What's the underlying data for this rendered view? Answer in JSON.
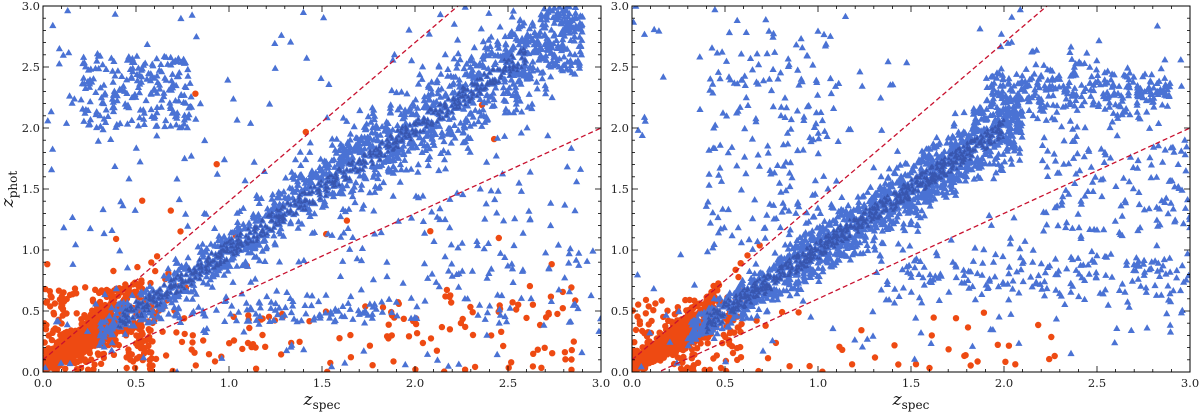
{
  "chart_data": [
    {
      "type": "scatter",
      "panel": "left",
      "xlabel": "z",
      "xlabel_sub": "spec",
      "ylabel": "z",
      "ylabel_sub": "phot",
      "xlim": [
        0.0,
        3.0
      ],
      "ylim": [
        0.0,
        3.0
      ],
      "xticks": [
        "0.0",
        "0.5",
        "1.0",
        "1.5",
        "2.0",
        "2.5",
        "3.0"
      ],
      "yticks": [
        "0.0",
        "0.5",
        "1.0",
        "1.5",
        "2.0",
        "2.5",
        "3.0"
      ],
      "reference_lines": [
        {
          "name": "upper-bound",
          "slope": 1.3,
          "intercept": 0.1
        },
        {
          "name": "lower-bound",
          "slope": 0.7,
          "intercept": -0.1
        }
      ],
      "series": [
        {
          "name": "blue-triangles",
          "marker": "triangle",
          "color": "#4a72d4",
          "relation": "z_phot tracks z_spec closely along the 1:1 relation from 0.3 to 2.9 with scattered outliers",
          "count": 2400
        },
        {
          "name": "red-circles",
          "marker": "circle",
          "color": "#ee4a12",
          "relation": "dense at z_spec < 0.6, z_phot < 0.6 with outliers up to z_spec 2.9",
          "count": 1300
        }
      ]
    },
    {
      "type": "scatter",
      "panel": "right",
      "xlabel": "z",
      "xlabel_sub": "spec",
      "xlim": [
        0.0,
        3.0
      ],
      "ylim": [
        0.0,
        3.0
      ],
      "xticks": [
        "0.0",
        "0.5",
        "1.0",
        "1.5",
        "2.0",
        "2.5",
        "3.0"
      ],
      "yticks": [
        "0.0",
        "0.5",
        "1.0",
        "1.5",
        "2.0",
        "2.5",
        "3.0"
      ],
      "reference_lines": [
        {
          "name": "upper-bound",
          "slope": 1.3,
          "intercept": 0.1
        },
        {
          "name": "lower-bound",
          "slope": 0.7,
          "intercept": -0.1
        }
      ],
      "series": [
        {
          "name": "blue-triangles",
          "marker": "triangle",
          "color": "#4a72d4",
          "relation": "z_phot follows z_spec with a plateau near 2.3 for z_spec 2.0-2.8 and a secondary branch near 0.8 at high z_spec",
          "count": 2600
        },
        {
          "name": "red-circles",
          "marker": "circle",
          "color": "#ee4a12",
          "relation": "concentrated at z_spec < 0.5, z_phot < 0.5",
          "count": 900
        }
      ]
    }
  ]
}
